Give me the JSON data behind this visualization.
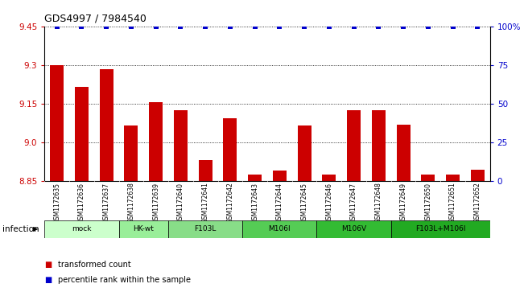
{
  "title": "GDS4997 / 7984540",
  "samples": [
    "GSM1172635",
    "GSM1172636",
    "GSM1172637",
    "GSM1172638",
    "GSM1172639",
    "GSM1172640",
    "GSM1172641",
    "GSM1172642",
    "GSM1172643",
    "GSM1172644",
    "GSM1172645",
    "GSM1172646",
    "GSM1172647",
    "GSM1172648",
    "GSM1172649",
    "GSM1172650",
    "GSM1172651",
    "GSM1172652"
  ],
  "bar_values": [
    9.3,
    9.215,
    9.285,
    9.065,
    9.155,
    9.125,
    8.93,
    9.095,
    8.875,
    8.89,
    9.065,
    8.875,
    9.125,
    9.125,
    9.07,
    8.875,
    8.875,
    8.895
  ],
  "percentile_values": [
    100,
    100,
    100,
    100,
    100,
    100,
    100,
    100,
    100,
    100,
    100,
    100,
    100,
    100,
    100,
    100,
    100,
    100
  ],
  "bar_color": "#cc0000",
  "dot_color": "#0000cc",
  "ylim_left": [
    8.85,
    9.45
  ],
  "ylim_right": [
    0,
    100
  ],
  "yticks_left": [
    8.85,
    9.0,
    9.15,
    9.3,
    9.45
  ],
  "yticks_right": [
    0,
    25,
    50,
    75,
    100
  ],
  "ytick_labels_right": [
    "0",
    "25",
    "50",
    "75",
    "100%"
  ],
  "grid_values": [
    9.0,
    9.15,
    9.3
  ],
  "groups": [
    {
      "label": "mock",
      "indices": [
        0,
        1,
        2
      ],
      "color": "#ccffcc"
    },
    {
      "label": "HK-wt",
      "indices": [
        3,
        4
      ],
      "color": "#99ee99"
    },
    {
      "label": "F103L",
      "indices": [
        5,
        6,
        7
      ],
      "color": "#88dd88"
    },
    {
      "label": "M106I",
      "indices": [
        8,
        9,
        10
      ],
      "color": "#55cc55"
    },
    {
      "label": "M106V",
      "indices": [
        11,
        12,
        13
      ],
      "color": "#33bb33"
    },
    {
      "label": "F103L+M106I",
      "indices": [
        14,
        15,
        16,
        17
      ],
      "color": "#22aa22"
    }
  ],
  "xtick_bg_color": "#d0d0d0",
  "background_color": "#ffffff",
  "plot_bg_color": "#ffffff",
  "title_fontsize": 9,
  "bar_width": 0.55
}
